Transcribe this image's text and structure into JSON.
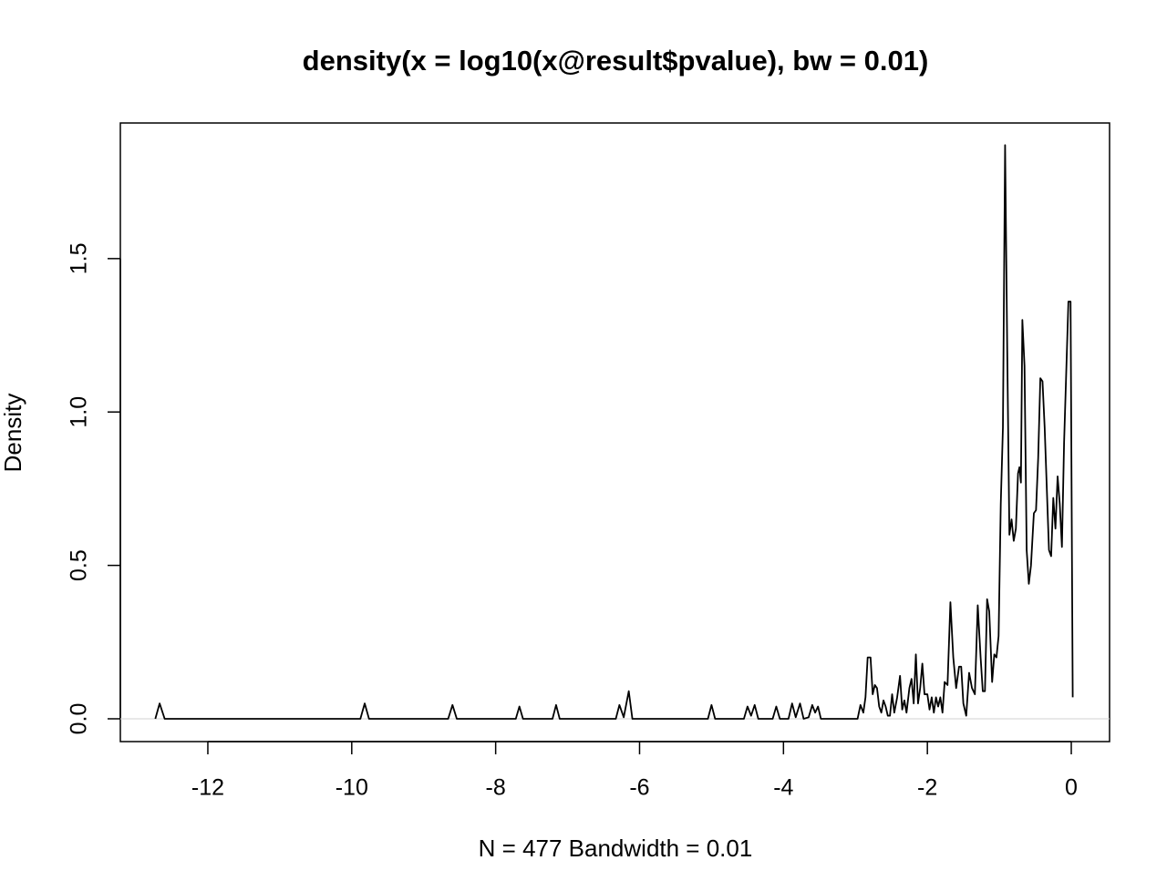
{
  "chart_data": {
    "type": "line",
    "title": "density(x = log10(x@result$pvalue), bw = 0.01)",
    "xlabel": "N = 477 Bandwidth = 0.01",
    "ylabel": "Density",
    "color": "#000000",
    "x": [
      -12.73,
      -12.67,
      -12.6,
      -9.88,
      -9.82,
      -9.76,
      -8.66,
      -8.6,
      -8.54,
      -7.72,
      -7.67,
      -7.62,
      -7.21,
      -7.16,
      -7.11,
      -6.33,
      -6.28,
      -6.22,
      -6.15,
      -6.1,
      -5.05,
      -5.0,
      -4.95,
      -4.55,
      -4.5,
      -4.45,
      -4.4,
      -4.35,
      -4.15,
      -4.1,
      -4.05,
      -3.93,
      -3.88,
      -3.83,
      -3.77,
      -3.72,
      -3.65,
      -3.6,
      -3.56,
      -3.52,
      -3.48,
      -2.97,
      -2.93,
      -2.89,
      -2.86,
      -2.83,
      -2.79,
      -2.76,
      -2.73,
      -2.7,
      -2.67,
      -2.64,
      -2.61,
      -2.58,
      -2.55,
      -2.52,
      -2.49,
      -2.46,
      -2.42,
      -2.38,
      -2.35,
      -2.32,
      -2.29,
      -2.25,
      -2.22,
      -2.19,
      -2.16,
      -2.13,
      -2.1,
      -2.07,
      -2.04,
      -2.0,
      -1.97,
      -1.94,
      -1.91,
      -1.88,
      -1.85,
      -1.82,
      -1.79,
      -1.76,
      -1.72,
      -1.68,
      -1.64,
      -1.6,
      -1.56,
      -1.53,
      -1.5,
      -1.46,
      -1.42,
      -1.38,
      -1.34,
      -1.3,
      -1.26,
      -1.23,
      -1.2,
      -1.17,
      -1.14,
      -1.1,
      -1.07,
      -1.04,
      -1.01,
      -0.98,
      -0.95,
      -0.92,
      -0.89,
      -0.86,
      -0.83,
      -0.8,
      -0.77,
      -0.74,
      -0.72,
      -0.7,
      -0.68,
      -0.65,
      -0.62,
      -0.59,
      -0.56,
      -0.52,
      -0.49,
      -0.46,
      -0.43,
      -0.4,
      -0.37,
      -0.34,
      -0.31,
      -0.28,
      -0.25,
      -0.22,
      -0.19,
      -0.16,
      -0.13,
      -0.1,
      -0.07,
      -0.04,
      -0.01,
      0.02
    ],
    "values": [
      0,
      0.05,
      0,
      0,
      0.05,
      0,
      0,
      0.045,
      0,
      0,
      0.04,
      0,
      0,
      0.045,
      0,
      0,
      0.045,
      0.005,
      0.09,
      0,
      0,
      0.045,
      0,
      0,
      0.04,
      0.01,
      0.045,
      0,
      0,
      0.04,
      0,
      0,
      0.05,
      0.005,
      0.05,
      0,
      0.005,
      0.045,
      0.02,
      0.04,
      0,
      0,
      0.045,
      0.02,
      0.07,
      0.2,
      0.2,
      0.08,
      0.11,
      0.1,
      0.04,
      0.02,
      0.06,
      0.04,
      0.01,
      0.01,
      0.08,
      0.02,
      0.07,
      0.14,
      0.03,
      0.06,
      0.02,
      0.1,
      0.13,
      0.05,
      0.21,
      0.05,
      0.1,
      0.18,
      0.08,
      0.08,
      0.03,
      0.07,
      0.02,
      0.07,
      0.04,
      0.07,
      0.02,
      0.12,
      0.11,
      0.38,
      0.2,
      0.1,
      0.17,
      0.17,
      0.05,
      0.01,
      0.15,
      0.1,
      0.08,
      0.37,
      0.2,
      0.09,
      0.09,
      0.39,
      0.35,
      0.12,
      0.21,
      0.2,
      0.27,
      0.7,
      0.95,
      1.87,
      1.2,
      0.6,
      0.65,
      0.58,
      0.62,
      0.8,
      0.82,
      0.77,
      1.3,
      1.15,
      0.55,
      0.44,
      0.5,
      0.67,
      0.68,
      0.85,
      1.11,
      1.1,
      0.95,
      0.75,
      0.55,
      0.53,
      0.72,
      0.62,
      0.79,
      0.7,
      0.56,
      0.9,
      1.13,
      1.36,
      1.36,
      0.07
    ],
    "xlim": [
      -13.216,
      0.532
    ],
    "ylim": [
      -0.0743,
      1.942
    ],
    "xticks": [
      -12,
      -10,
      -8,
      -6,
      -4,
      -2,
      0
    ],
    "yticks": [
      {
        "value": 0,
        "label": "0.0"
      },
      0.5,
      {
        "value": 1,
        "label": "1.0"
      },
      1.5
    ]
  }
}
